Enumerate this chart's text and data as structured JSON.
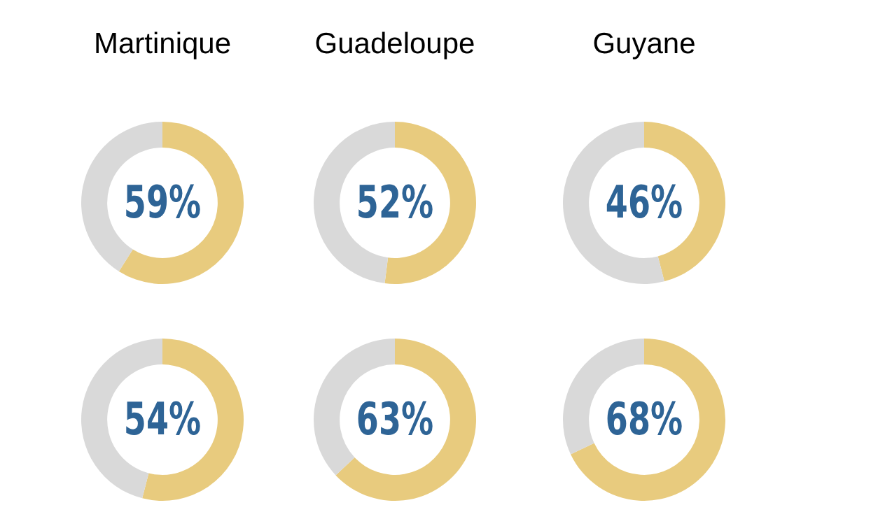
{
  "chart_data": [
    {
      "type": "donut",
      "title": "Martinique",
      "categories": [
        null,
        null
      ],
      "values": [
        59,
        41
      ],
      "colors": [
        "#e8cb7e",
        "#d9d9d9"
      ],
      "value_labels": [
        "59%",
        null
      ],
      "legend": false
    },
    {
      "type": "donut",
      "title": "Guadeloupe",
      "categories": [
        null,
        null
      ],
      "values": [
        52,
        48
      ],
      "colors": [
        "#e8cb7e",
        "#d9d9d9"
      ],
      "value_labels": [
        "52%",
        null
      ],
      "legend": false
    },
    {
      "type": "donut",
      "title": "Guyane",
      "categories": [
        null,
        null
      ],
      "values": [
        46,
        54
      ],
      "colors": [
        "#e8cb7e",
        "#d9d9d9"
      ],
      "value_labels": [
        "46%",
        null
      ],
      "legend": false
    },
    {
      "type": "donut",
      "categories": [
        null,
        null
      ],
      "values": [
        54,
        46
      ],
      "colors": [
        "#e8cb7e",
        "#d9d9d9"
      ],
      "value_labels": [
        "54%",
        null
      ],
      "legend": false
    },
    {
      "type": "donut",
      "categories": [
        null,
        null
      ],
      "values": [
        63,
        37
      ],
      "colors": [
        "#e8cb7e",
        "#d9d9d9"
      ],
      "value_labels": [
        "63%",
        null
      ],
      "legend": false
    },
    {
      "type": "donut",
      "categories": [
        null,
        null
      ],
      "values": [
        68,
        32
      ],
      "colors": [
        "#e8cb7e",
        "#d9d9d9"
      ],
      "value_labels": [
        "68%",
        null
      ],
      "legend": false
    }
  ]
}
